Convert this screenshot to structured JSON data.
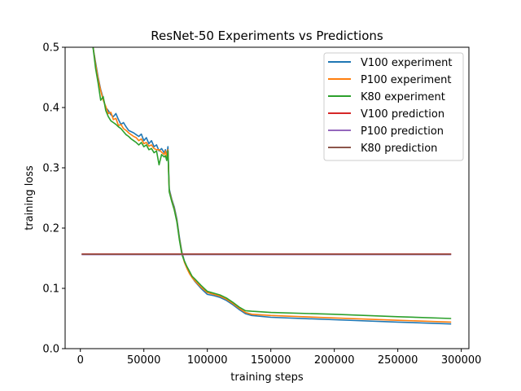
{
  "chart_data": {
    "type": "line",
    "title": "ResNet-50 Experiments vs Predictions",
    "xlabel": "training steps",
    "ylabel": "training loss",
    "xlim": [
      -12000,
      306000
    ],
    "ylim": [
      0.0,
      0.5
    ],
    "xticks": [
      0,
      50000,
      100000,
      150000,
      200000,
      250000,
      300000
    ],
    "yticks": [
      0.0,
      0.1,
      0.2,
      0.3,
      0.4,
      0.5
    ],
    "xtick_labels": [
      "0",
      "50000",
      "100000",
      "150000",
      "200000",
      "250000",
      "300000"
    ],
    "ytick_labels": [
      "0.0",
      "0.1",
      "0.2",
      "0.3",
      "0.4",
      "0.5"
    ],
    "grid": false,
    "legend_position": "top-right",
    "series": [
      {
        "name": "V100 experiment",
        "color": "#1f77b4",
        "x": [
          10000,
          12000,
          14000,
          16000,
          18000,
          20000,
          22000,
          24000,
          26000,
          28000,
          30000,
          32000,
          34000,
          36000,
          38000,
          40000,
          42000,
          44000,
          46000,
          48000,
          50000,
          52000,
          54000,
          56000,
          58000,
          60000,
          62000,
          64000,
          66000,
          67000,
          68000,
          69000,
          70000,
          72000,
          74000,
          76000,
          78000,
          80000,
          82000,
          84000,
          86000,
          88000,
          90000,
          95000,
          100000,
          105000,
          110000,
          115000,
          120000,
          125000,
          130000,
          135000,
          150000,
          200000,
          250000,
          292000
        ],
        "y": [
          0.5,
          0.475,
          0.45,
          0.43,
          0.415,
          0.4,
          0.395,
          0.388,
          0.385,
          0.39,
          0.38,
          0.372,
          0.375,
          0.368,
          0.362,
          0.36,
          0.358,
          0.355,
          0.352,
          0.356,
          0.345,
          0.35,
          0.34,
          0.345,
          0.335,
          0.338,
          0.328,
          0.332,
          0.325,
          0.33,
          0.32,
          0.335,
          0.265,
          0.248,
          0.235,
          0.215,
          0.185,
          0.16,
          0.145,
          0.135,
          0.125,
          0.118,
          0.112,
          0.1,
          0.09,
          0.088,
          0.085,
          0.08,
          0.073,
          0.065,
          0.058,
          0.055,
          0.052,
          0.048,
          0.044,
          0.041
        ]
      },
      {
        "name": "P100 experiment",
        "color": "#ff7f0e",
        "x": [
          10000,
          12000,
          14000,
          16000,
          18000,
          20000,
          22000,
          24000,
          26000,
          28000,
          30000,
          32000,
          34000,
          36000,
          38000,
          40000,
          42000,
          44000,
          46000,
          48000,
          50000,
          52000,
          54000,
          56000,
          58000,
          60000,
          62000,
          64000,
          66000,
          67000,
          68000,
          69000,
          70000,
          72000,
          74000,
          76000,
          78000,
          80000,
          82000,
          84000,
          86000,
          88000,
          90000,
          95000,
          100000,
          105000,
          110000,
          115000,
          120000,
          125000,
          130000,
          135000,
          150000,
          200000,
          250000,
          292000
        ],
        "y": [
          0.5,
          0.472,
          0.447,
          0.428,
          0.412,
          0.402,
          0.39,
          0.392,
          0.38,
          0.382,
          0.37,
          0.372,
          0.365,
          0.362,
          0.358,
          0.355,
          0.352,
          0.35,
          0.345,
          0.348,
          0.34,
          0.342,
          0.336,
          0.338,
          0.332,
          0.33,
          0.33,
          0.326,
          0.322,
          0.328,
          0.318,
          0.33,
          0.262,
          0.246,
          0.232,
          0.212,
          0.182,
          0.158,
          0.143,
          0.133,
          0.124,
          0.118,
          0.113,
          0.102,
          0.093,
          0.09,
          0.087,
          0.082,
          0.075,
          0.067,
          0.06,
          0.057,
          0.055,
          0.051,
          0.047,
          0.044
        ]
      },
      {
        "name": "K80 experiment",
        "color": "#2ca02c",
        "x": [
          10000,
          12000,
          14000,
          16000,
          18000,
          20000,
          22000,
          24000,
          26000,
          28000,
          30000,
          32000,
          34000,
          36000,
          38000,
          40000,
          42000,
          44000,
          46000,
          48000,
          50000,
          52000,
          54000,
          56000,
          58000,
          60000,
          62000,
          64000,
          66000,
          67000,
          68000,
          69000,
          70000,
          72000,
          74000,
          76000,
          78000,
          80000,
          82000,
          84000,
          86000,
          88000,
          90000,
          95000,
          100000,
          105000,
          110000,
          115000,
          120000,
          125000,
          130000,
          135000,
          150000,
          200000,
          250000,
          292000
        ],
        "y": [
          0.5,
          0.465,
          0.44,
          0.412,
          0.418,
          0.395,
          0.385,
          0.378,
          0.375,
          0.372,
          0.368,
          0.365,
          0.36,
          0.355,
          0.352,
          0.348,
          0.345,
          0.342,
          0.338,
          0.342,
          0.335,
          0.338,
          0.33,
          0.332,
          0.325,
          0.328,
          0.305,
          0.322,
          0.318,
          0.32,
          0.312,
          0.328,
          0.26,
          0.244,
          0.23,
          0.21,
          0.18,
          0.156,
          0.145,
          0.136,
          0.128,
          0.12,
          0.116,
          0.105,
          0.095,
          0.092,
          0.089,
          0.084,
          0.077,
          0.069,
          0.063,
          0.062,
          0.06,
          0.057,
          0.053,
          0.05
        ]
      },
      {
        "name": "V100 prediction",
        "color": "#d62728",
        "x": [
          1000,
          292000
        ],
        "y": [
          0.157,
          0.157
        ]
      },
      {
        "name": "P100 prediction",
        "color": "#9467bd",
        "x": [
          1000,
          292000
        ],
        "y": [
          0.156,
          0.156
        ]
      },
      {
        "name": "K80 prediction",
        "color": "#8c564b",
        "x": [
          1000,
          292000
        ],
        "y": [
          0.1565,
          0.1565
        ]
      }
    ]
  }
}
